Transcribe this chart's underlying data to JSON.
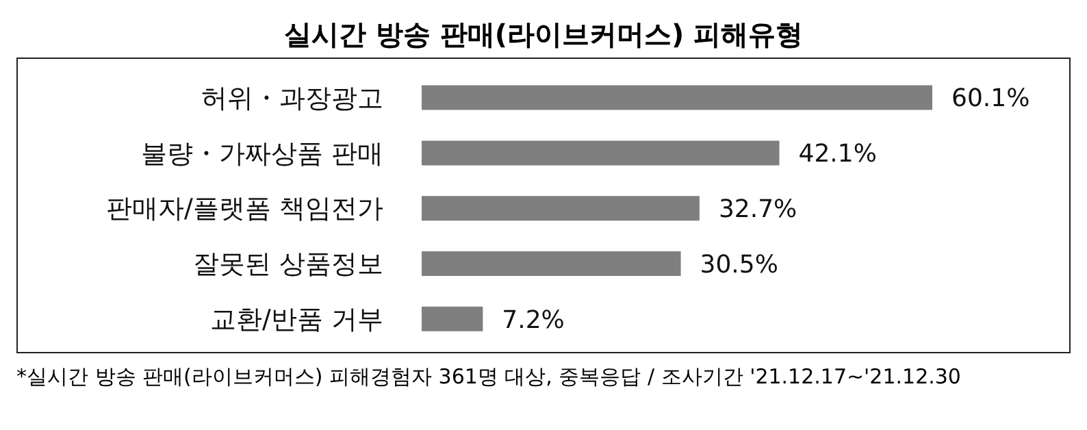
{
  "chart_data": {
    "type": "bar",
    "orientation": "horizontal",
    "title": "실시간 방송 판매(라이브커머스) 피해유형",
    "categories": [
      "허위・과장광고",
      "불량・가짜상품 판매",
      "판매자/플랫폼 책임전가",
      "잘못된 상품정보",
      "교환/반품 거부"
    ],
    "values": [
      60.1,
      42.1,
      32.7,
      30.5,
      7.2
    ],
    "value_labels": [
      "60.1%",
      "42.1%",
      "32.7%",
      "30.5%",
      "7.2%"
    ],
    "color": "#7f7f7f",
    "annotations": [
      "*실시간 방송 판매(라이브커머스) 피해경험자 361명 대상, 중복응답 / 조사기간 '21.12.17~'21.12.30"
    ]
  }
}
